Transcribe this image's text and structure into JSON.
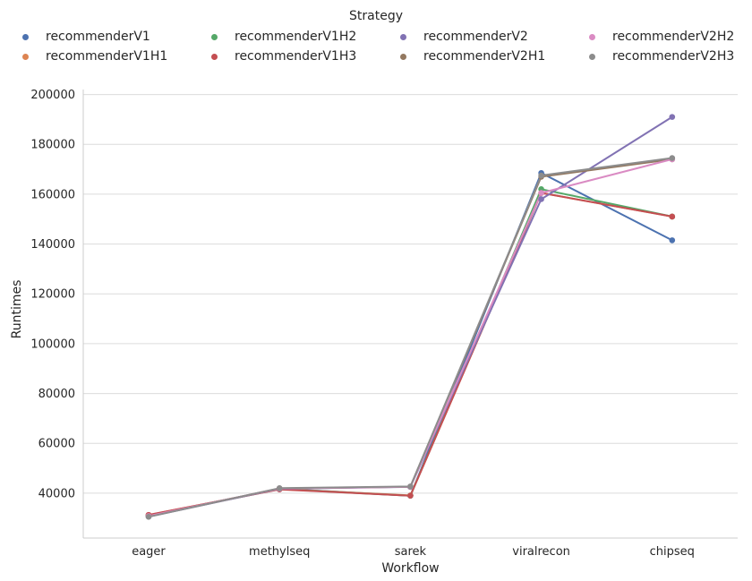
{
  "chart_data": {
    "type": "line",
    "xlabel": "Workflow",
    "ylabel": "Runtimes",
    "categories": [
      "eager",
      "methylseq",
      "sarek",
      "viralrecon",
      "chipseq"
    ],
    "ylim": [
      22000,
      202000
    ],
    "yticks": [
      40000,
      60000,
      80000,
      100000,
      120000,
      140000,
      160000,
      180000,
      200000
    ],
    "grid": "horizontal",
    "legend": {
      "title": "Strategy",
      "placement": "top",
      "columns": 4
    },
    "series": [
      {
        "name": "recommenderV1",
        "color": "#4c72b0",
        "values": [
          31000,
          41800,
          39000,
          168500,
          141500
        ]
      },
      {
        "name": "recommenderV1H1",
        "color": "#dd8452",
        "values": [
          31200,
          41700,
          39100,
          160500,
          151000
        ]
      },
      {
        "name": "recommenderV1H2",
        "color": "#55a868",
        "values": [
          31100,
          41600,
          39000,
          162000,
          151000
        ]
      },
      {
        "name": "recommenderV1H3",
        "color": "#c44e52",
        "values": [
          31300,
          41500,
          39000,
          160500,
          151000
        ]
      },
      {
        "name": "recommenderV2",
        "color": "#8172b3",
        "values": [
          30600,
          41800,
          42500,
          158000,
          191000
        ]
      },
      {
        "name": "recommenderV2H1",
        "color": "#937860",
        "values": [
          30700,
          41900,
          42600,
          167000,
          174000
        ]
      },
      {
        "name": "recommenderV2H2",
        "color": "#da8bc3",
        "values": [
          30800,
          41900,
          42600,
          160500,
          174000
        ]
      },
      {
        "name": "recommenderV2H3",
        "color": "#8c8c8c",
        "values": [
          30500,
          42000,
          42700,
          167500,
          174500
        ]
      }
    ]
  }
}
